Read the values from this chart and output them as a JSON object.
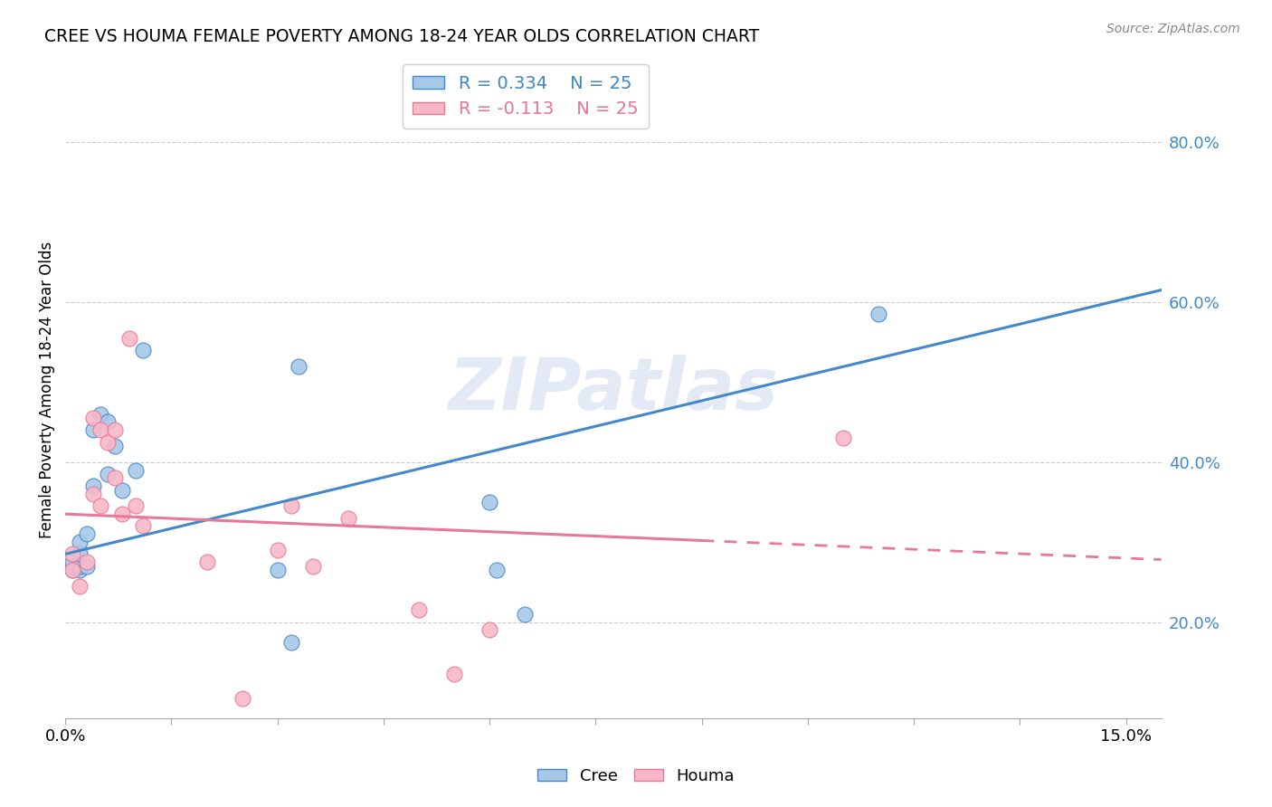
{
  "title": "CREE VS HOUMA FEMALE POVERTY AMONG 18-24 YEAR OLDS CORRELATION CHART",
  "source": "Source: ZipAtlas.com",
  "ylabel": "Female Poverty Among 18-24 Year Olds",
  "xlim": [
    0.0,
    0.155
  ],
  "ylim": [
    0.08,
    0.9
  ],
  "ytick_positions": [
    0.2,
    0.4,
    0.6,
    0.8
  ],
  "ytick_labels": [
    "20.0%",
    "40.0%",
    "60.0%",
    "80.0%"
  ],
  "cree_R": 0.334,
  "cree_N": 25,
  "houma_R": -0.113,
  "houma_N": 25,
  "cree_color": "#a8c8e8",
  "houma_color": "#f8b8c8",
  "cree_line_color": "#4488cc",
  "houma_line_color": "#e87898",
  "watermark": "ZIPatlas",
  "cree_line_x0": 0.0,
  "cree_line_y0": 0.285,
  "cree_line_x1": 0.155,
  "cree_line_y1": 0.615,
  "houma_line_x0": 0.0,
  "houma_line_y0": 0.335,
  "houma_line_x1": 0.155,
  "houma_line_y1": 0.278,
  "houma_line_dashed_x0": 0.09,
  "houma_line_dashed_x1": 0.155,
  "cree_x": [
    0.001,
    0.001,
    0.001,
    0.002,
    0.002,
    0.002,
    0.002,
    0.003,
    0.003,
    0.004,
    0.004,
    0.005,
    0.006,
    0.006,
    0.007,
    0.008,
    0.01,
    0.011,
    0.03,
    0.032,
    0.033,
    0.06,
    0.061,
    0.065,
    0.115
  ],
  "cree_y": [
    0.265,
    0.27,
    0.275,
    0.265,
    0.27,
    0.285,
    0.3,
    0.27,
    0.31,
    0.37,
    0.44,
    0.46,
    0.385,
    0.45,
    0.42,
    0.365,
    0.39,
    0.54,
    0.265,
    0.175,
    0.52,
    0.35,
    0.265,
    0.21,
    0.585
  ],
  "houma_x": [
    0.001,
    0.001,
    0.002,
    0.003,
    0.004,
    0.004,
    0.005,
    0.005,
    0.006,
    0.007,
    0.007,
    0.008,
    0.009,
    0.01,
    0.011,
    0.02,
    0.025,
    0.03,
    0.032,
    0.035,
    0.04,
    0.05,
    0.055,
    0.06,
    0.11
  ],
  "houma_y": [
    0.265,
    0.285,
    0.245,
    0.275,
    0.455,
    0.36,
    0.44,
    0.345,
    0.425,
    0.44,
    0.38,
    0.335,
    0.555,
    0.345,
    0.32,
    0.275,
    0.105,
    0.29,
    0.345,
    0.27,
    0.33,
    0.215,
    0.135,
    0.19,
    0.43
  ]
}
